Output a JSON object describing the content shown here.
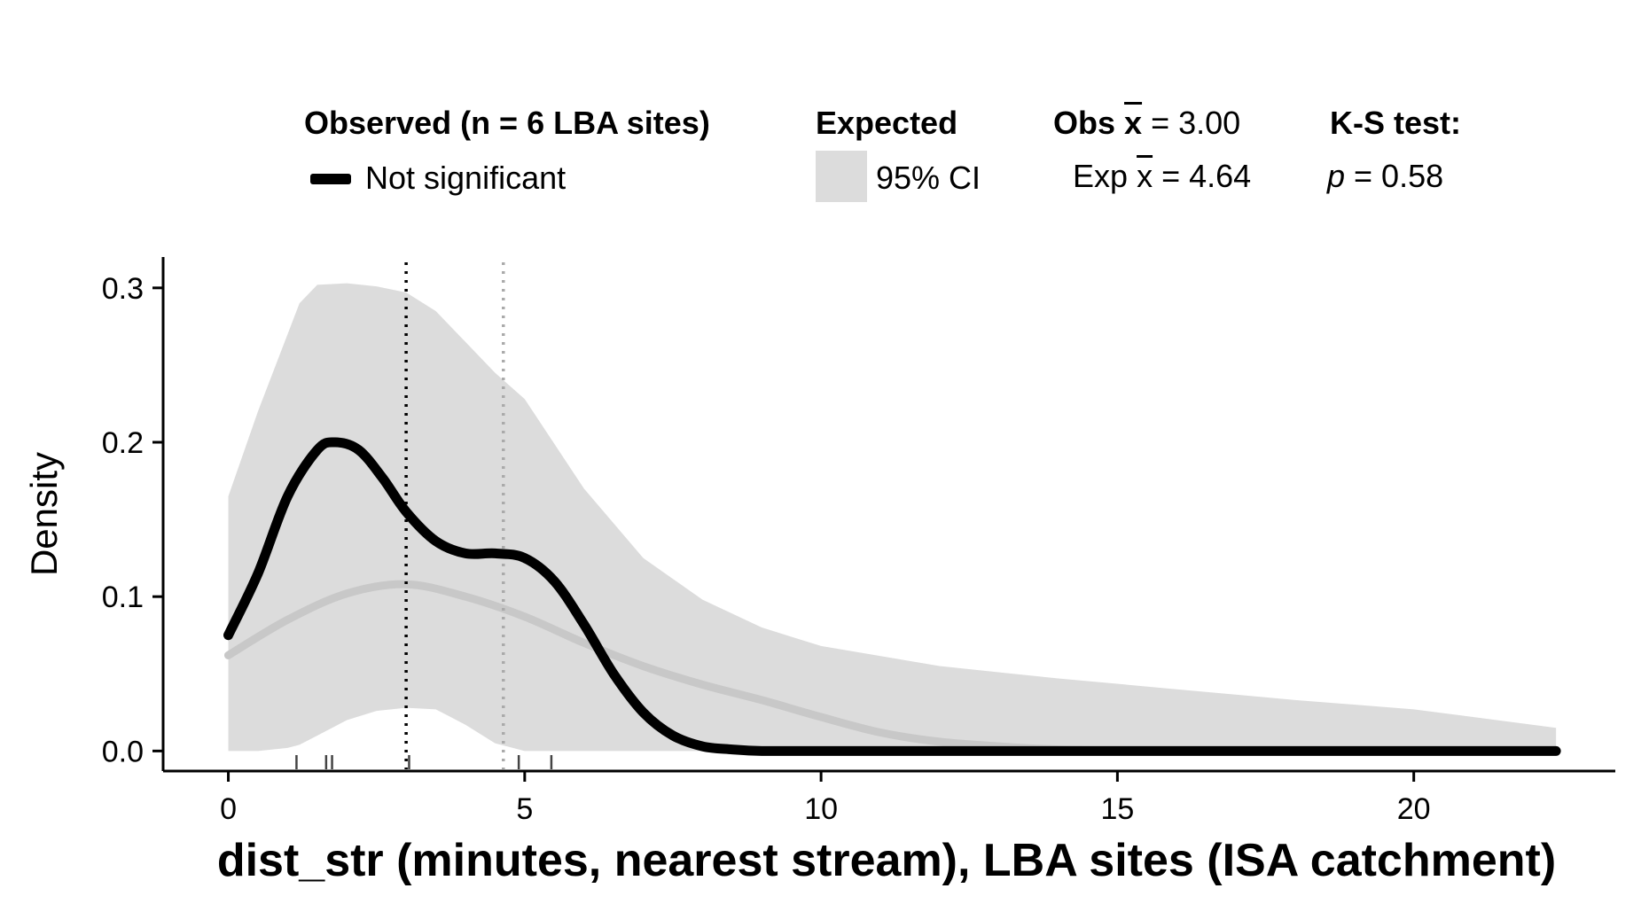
{
  "legend": {
    "observed_title": "Observed (n = 6 LBA sites)",
    "observed_item": "Not significant",
    "expected_title": "Expected",
    "expected_item": "95% CI",
    "obs_mean_prefix": "Obs",
    "obs_mean_symbol": "x",
    "obs_mean_value": " = 3.00",
    "exp_mean_prefix": "Exp",
    "exp_mean_symbol": "x",
    "exp_mean_value": " = 4.64",
    "ks_title": "K-S test:",
    "ks_p_label": "p",
    "ks_p_value": " = 0.58"
  },
  "chart_data": {
    "type": "area",
    "xlabel": "dist_str (minutes, nearest stream), LBA sites (ISA catchment)",
    "ylabel": "Density",
    "xlim": [
      -1.1,
      23.4
    ],
    "ylim": [
      -0.013,
      0.32
    ],
    "x_ticks": [
      0,
      5,
      10,
      15,
      20
    ],
    "y_ticks": [
      0.0,
      0.1,
      0.2,
      0.3
    ],
    "y_tick_labels": [
      "0.0",
      "0.1",
      "0.2",
      "0.3"
    ],
    "grid": false,
    "legend_position": "top",
    "colors": {
      "observed": "#000000",
      "expected_mean": "#c8c8c8",
      "ci_band": "#dcdcdc",
      "obs_mean_line": "#000000",
      "exp_mean_line": "#aaaaaa",
      "rug": "#444444"
    },
    "ci_band": {
      "x": [
        0,
        0.5,
        1,
        1.2,
        1.5,
        2,
        2.5,
        3,
        3.5,
        4,
        4.5,
        5,
        6,
        7,
        8,
        9,
        10,
        12,
        14,
        16,
        18,
        20,
        22.4
      ],
      "upper": [
        0.165,
        0.22,
        0.27,
        0.29,
        0.302,
        0.303,
        0.301,
        0.297,
        0.285,
        0.265,
        0.245,
        0.228,
        0.17,
        0.125,
        0.098,
        0.08,
        0.068,
        0.055,
        0.047,
        0.04,
        0.033,
        0.027,
        0.015
      ],
      "lower": [
        0.0,
        0.0,
        0.002,
        0.004,
        0.01,
        0.02,
        0.026,
        0.028,
        0.027,
        0.017,
        0.005,
        0.0,
        0.0,
        0.0,
        0.0,
        0.0,
        0.0,
        0.0,
        0.0,
        0.0,
        0.0,
        0.0,
        0.0
      ]
    },
    "series": [
      {
        "name": "Not significant",
        "x": [
          0,
          0.5,
          1,
          1.5,
          1.8,
          2.2,
          2.6,
          3,
          3.5,
          4,
          4.5,
          5,
          5.5,
          6,
          6.5,
          7,
          7.5,
          8,
          8.5,
          9,
          10,
          12,
          15,
          20,
          22.4
        ],
        "y": [
          0.075,
          0.115,
          0.165,
          0.195,
          0.2,
          0.195,
          0.177,
          0.155,
          0.136,
          0.128,
          0.128,
          0.125,
          0.11,
          0.082,
          0.05,
          0.025,
          0.01,
          0.003,
          0.001,
          0.0,
          0.0,
          0.0,
          0.0,
          0.0,
          0.0
        ]
      },
      {
        "name": "Expected mean",
        "x": [
          0,
          1,
          2,
          3,
          4,
          5,
          6,
          7,
          8,
          9,
          10,
          11,
          12,
          13,
          14,
          16,
          18,
          20,
          22.4
        ],
        "y": [
          0.062,
          0.085,
          0.102,
          0.108,
          0.1,
          0.087,
          0.07,
          0.055,
          0.043,
          0.033,
          0.022,
          0.012,
          0.006,
          0.003,
          0.001,
          0.0,
          0.0,
          0.0,
          0.0
        ]
      }
    ],
    "vlines": [
      {
        "x": 3.0
      },
      {
        "x": 4.64
      }
    ],
    "rug": [
      1.15,
      1.65,
      1.75,
      3.05,
      4.9,
      5.45
    ]
  }
}
